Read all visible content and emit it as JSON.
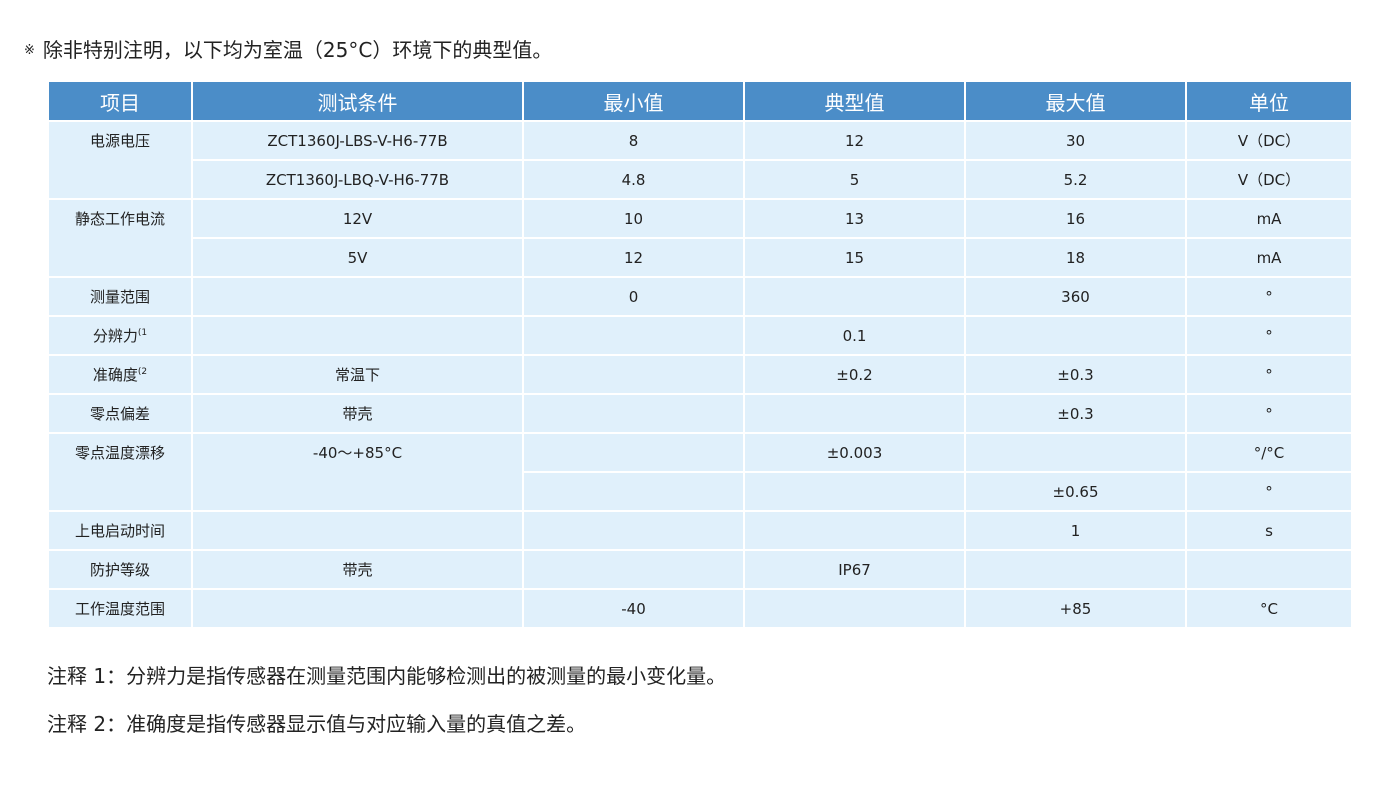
{
  "note_top": "除非特别注明，以下均为室温（25°C）环境下的典型值。",
  "note_star": "※",
  "colors": {
    "header": "#4b8dc8",
    "row": "#e0f0fb"
  },
  "headers": [
    "项目",
    "测试条件",
    "最小值",
    "典型值",
    "最大值",
    "单位"
  ],
  "rows": {
    "r0": {
      "item": "电源电压",
      "cond": "ZCT1360J-LBS-V-H6-77B",
      "min": "8",
      "typ": "12",
      "max": "30",
      "unit": "V（DC）"
    },
    "r1": {
      "cond": "ZCT1360J-LBQ-V-H6-77B",
      "min": "4.8",
      "typ": "5",
      "max": "5.2",
      "unit": "V（DC）"
    },
    "r2": {
      "item": "静态工作电流",
      "cond": "12V",
      "min": "10",
      "typ": "13",
      "max": "16",
      "unit": "mA"
    },
    "r3": {
      "cond": "5V",
      "min": "12",
      "typ": "15",
      "max": "18",
      "unit": "mA"
    },
    "r4": {
      "item": "测量范围",
      "cond": "",
      "min": "0",
      "typ": "",
      "max": "360",
      "unit": "°"
    },
    "r5": {
      "item": "分辨力",
      "sup": "(1",
      "cond": "",
      "min": "",
      "typ": "0.1",
      "max": "",
      "unit": "°"
    },
    "r6": {
      "item": "准确度",
      "sup": "(2",
      "cond": "常温下",
      "min": "",
      "typ": "±0.2",
      "max": "±0.3",
      "unit": "°"
    },
    "r7": {
      "item": "零点偏差",
      "cond": "带壳",
      "min": "",
      "typ": "",
      "max": "±0.3",
      "unit": "°"
    },
    "r8": {
      "item": "零点温度漂移",
      "cond": "-40～+85°C",
      "min": "",
      "typ": "±0.003",
      "max": "",
      "unit": "°/°C"
    },
    "r9": {
      "min": "",
      "typ": "",
      "max": "±0.65",
      "unit": "°"
    },
    "r10": {
      "item": "上电启动时间",
      "cond": "",
      "min": "",
      "typ": "",
      "max": "1",
      "unit": "s"
    },
    "r11": {
      "item": "防护等级",
      "cond": "带壳",
      "min": "",
      "typ": "IP67",
      "max": "",
      "unit": ""
    },
    "r12": {
      "item": "工作温度范围",
      "cond": "",
      "min": "-40",
      "typ": "",
      "max": "+85",
      "unit": "°C"
    }
  },
  "footnotes": [
    "注释 1：分辨力是指传感器在测量范围内能够检测出的被测量的最小变化量。",
    "注释 2：准确度是指传感器显示值与对应输入量的真值之差。"
  ]
}
